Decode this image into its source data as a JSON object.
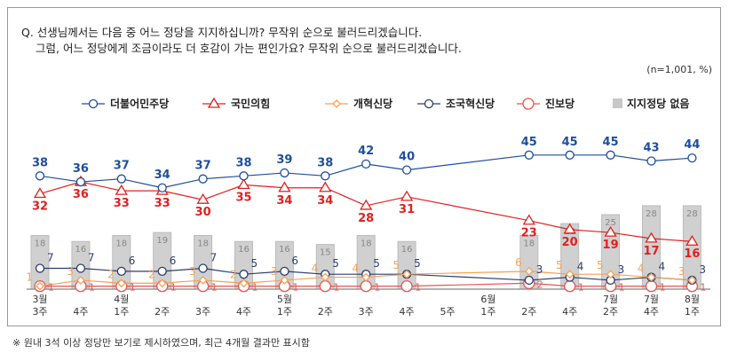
{
  "question": {
    "line1": "Q. 선생님께서는 다음 중 어느 정당을 지지하십니까? 무작위 순으로 불러드리겠습니다.",
    "line2": "그럼, 어느 정당에게 조금이라도 더 호감이 가는 편인가요? 무작위 순으로 불러드리겠습니다."
  },
  "note": "(n=1,001, %)",
  "footnote": "※ 원내 3석 이상 정당만 보기로 제시하였으며, 최근 4개월 결과만 표시함",
  "chart_data": {
    "type": "line",
    "categories": [
      [
        "3월",
        "3주"
      ],
      [
        "",
        "4주"
      ],
      [
        "4월",
        "1주"
      ],
      [
        "",
        "2주"
      ],
      [
        "",
        "3주"
      ],
      [
        "",
        "4주"
      ],
      [
        "5월",
        "1주"
      ],
      [
        "",
        "2주"
      ],
      [
        "",
        "3주"
      ],
      [
        "",
        "4주"
      ],
      [
        "",
        "5주"
      ],
      [
        "6월",
        "1주"
      ],
      [
        "",
        "2주"
      ],
      [
        "",
        "4주"
      ],
      [
        "7월",
        "2주"
      ],
      [
        "7월",
        "4주"
      ],
      [
        "8월",
        "1주"
      ]
    ],
    "ylim": [
      0,
      50
    ],
    "legend_position": "top",
    "bars": {
      "name": "지지정당 없음",
      "color": "#c8c8c8",
      "values": [
        18,
        16,
        18,
        19,
        18,
        16,
        16,
        15,
        18,
        16,
        null,
        null,
        18,
        22,
        25,
        28,
        28
      ]
    },
    "series": [
      {
        "name": "더불어민주당",
        "color": "#1f4e9c",
        "marker": "circle",
        "values": [
          38,
          36,
          37,
          34,
          37,
          38,
          39,
          38,
          42,
          40,
          null,
          null,
          45,
          45,
          45,
          43,
          44
        ]
      },
      {
        "name": "국민의힘",
        "color": "#e02020",
        "marker": "triangle",
        "values": [
          32,
          36,
          33,
          33,
          30,
          35,
          34,
          34,
          28,
          31,
          null,
          null,
          23,
          20,
          19,
          17,
          16
        ]
      },
      {
        "name": "개혁신당",
        "color": "#f5a055",
        "marker": "diamond",
        "values": [
          1,
          3,
          2,
          2,
          3,
          2,
          3,
          4,
          4,
          5,
          null,
          null,
          6,
          5,
          5,
          4,
          3
        ]
      },
      {
        "name": "조국혁신당",
        "color": "#2c3e6e",
        "marker": "circle",
        "values": [
          7,
          7,
          6,
          6,
          7,
          5,
          6,
          5,
          5,
          5,
          null,
          null,
          3,
          4,
          3,
          4,
          3
        ]
      },
      {
        "name": "진보당",
        "color": "#e8554f",
        "marker": "bigcircle",
        "values": [
          1,
          1,
          1,
          1,
          1,
          1,
          1,
          1,
          1,
          1,
          null,
          null,
          2,
          1,
          1,
          1,
          1
        ]
      }
    ]
  }
}
